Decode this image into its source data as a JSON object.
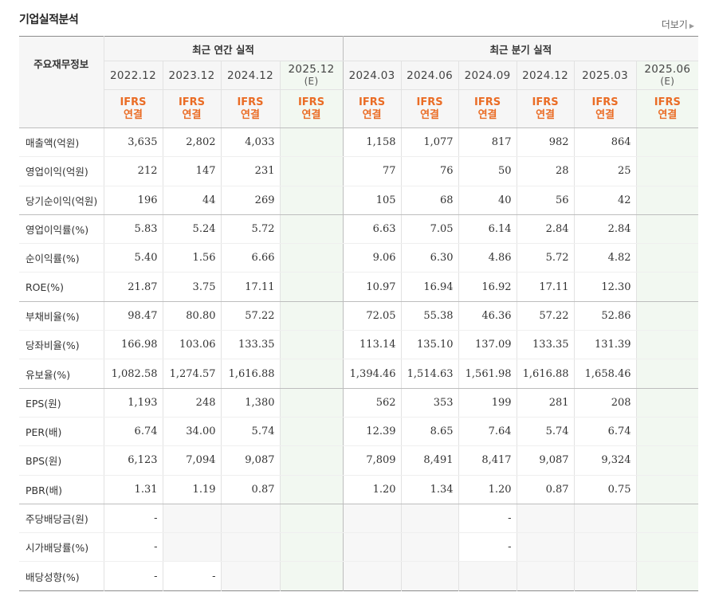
{
  "title": "기업실적분석",
  "more_label": "더보기",
  "header": {
    "label_col": "주요재무정보",
    "group_annual": "최근 연간 실적",
    "group_quarter": "최근 분기 실적",
    "annual_periods": [
      "2022.12",
      "2023.12",
      "2024.12",
      "2025.12"
    ],
    "quarter_periods": [
      "2024.03",
      "2024.06",
      "2024.09",
      "2024.12",
      "2025.03",
      "2025.06"
    ],
    "estimate_tag": "(E)",
    "ifrs_line1": "IFRS",
    "ifrs_line2": "연결"
  },
  "rows": [
    {
      "label": "매출액(억원)",
      "annual": [
        "3,635",
        "2,802",
        "4,033",
        ""
      ],
      "quarter": [
        "1,158",
        "1,077",
        "817",
        "982",
        "864",
        ""
      ]
    },
    {
      "label": "영업이익(억원)",
      "annual": [
        "212",
        "147",
        "231",
        ""
      ],
      "quarter": [
        "77",
        "76",
        "50",
        "28",
        "25",
        ""
      ]
    },
    {
      "label": "당기순이익(억원)",
      "annual": [
        "196",
        "44",
        "269",
        ""
      ],
      "quarter": [
        "105",
        "68",
        "40",
        "56",
        "42",
        ""
      ]
    },
    {
      "label": "영업이익률(%)",
      "annual": [
        "5.83",
        "5.24",
        "5.72",
        ""
      ],
      "quarter": [
        "6.63",
        "7.05",
        "6.14",
        "2.84",
        "2.84",
        ""
      ]
    },
    {
      "label": "순이익률(%)",
      "annual": [
        "5.40",
        "1.56",
        "6.66",
        ""
      ],
      "quarter": [
        "9.06",
        "6.30",
        "4.86",
        "5.72",
        "4.82",
        ""
      ]
    },
    {
      "label": "ROE(%)",
      "annual": [
        "21.87",
        "3.75",
        "17.11",
        ""
      ],
      "quarter": [
        "10.97",
        "16.94",
        "16.92",
        "17.11",
        "12.30",
        ""
      ]
    },
    {
      "label": "부채비율(%)",
      "annual": [
        "98.47",
        "80.80",
        "57.22",
        ""
      ],
      "quarter": [
        "72.05",
        "55.38",
        "46.36",
        "57.22",
        "52.86",
        ""
      ]
    },
    {
      "label": "당좌비율(%)",
      "annual": [
        "166.98",
        "103.06",
        "133.35",
        ""
      ],
      "quarter": [
        "113.14",
        "135.10",
        "137.09",
        "133.35",
        "131.39",
        ""
      ]
    },
    {
      "label": "유보율(%)",
      "annual": [
        "1,082.58",
        "1,274.57",
        "1,616.88",
        ""
      ],
      "quarter": [
        "1,394.46",
        "1,514.63",
        "1,561.98",
        "1,616.88",
        "1,658.46",
        ""
      ]
    },
    {
      "label": "EPS(원)",
      "annual": [
        "1,193",
        "248",
        "1,380",
        ""
      ],
      "quarter": [
        "562",
        "353",
        "199",
        "281",
        "208",
        ""
      ]
    },
    {
      "label": "PER(배)",
      "annual": [
        "6.74",
        "34.00",
        "5.74",
        ""
      ],
      "quarter": [
        "12.39",
        "8.65",
        "7.64",
        "5.74",
        "6.74",
        ""
      ]
    },
    {
      "label": "BPS(원)",
      "annual": [
        "6,123",
        "7,094",
        "9,087",
        ""
      ],
      "quarter": [
        "7,809",
        "8,491",
        "8,417",
        "9,087",
        "9,324",
        ""
      ]
    },
    {
      "label": "PBR(배)",
      "annual": [
        "1.31",
        "1.19",
        "0.87",
        ""
      ],
      "quarter": [
        "1.20",
        "1.34",
        "1.20",
        "0.87",
        "0.75",
        ""
      ]
    },
    {
      "label": "주당배당금(원)",
      "annual": [
        "-",
        "",
        "",
        ""
      ],
      "quarter": [
        "",
        "",
        "-",
        "",
        "",
        ""
      ]
    },
    {
      "label": "시가배당률(%)",
      "annual": [
        "-",
        "",
        "",
        ""
      ],
      "quarter": [
        "",
        "",
        "-",
        "",
        "",
        ""
      ]
    },
    {
      "label": "배당성향(%)",
      "annual": [
        "-",
        "-",
        "",
        ""
      ],
      "quarter": [
        "",
        "",
        "",
        "",
        "",
        ""
      ]
    }
  ]
}
